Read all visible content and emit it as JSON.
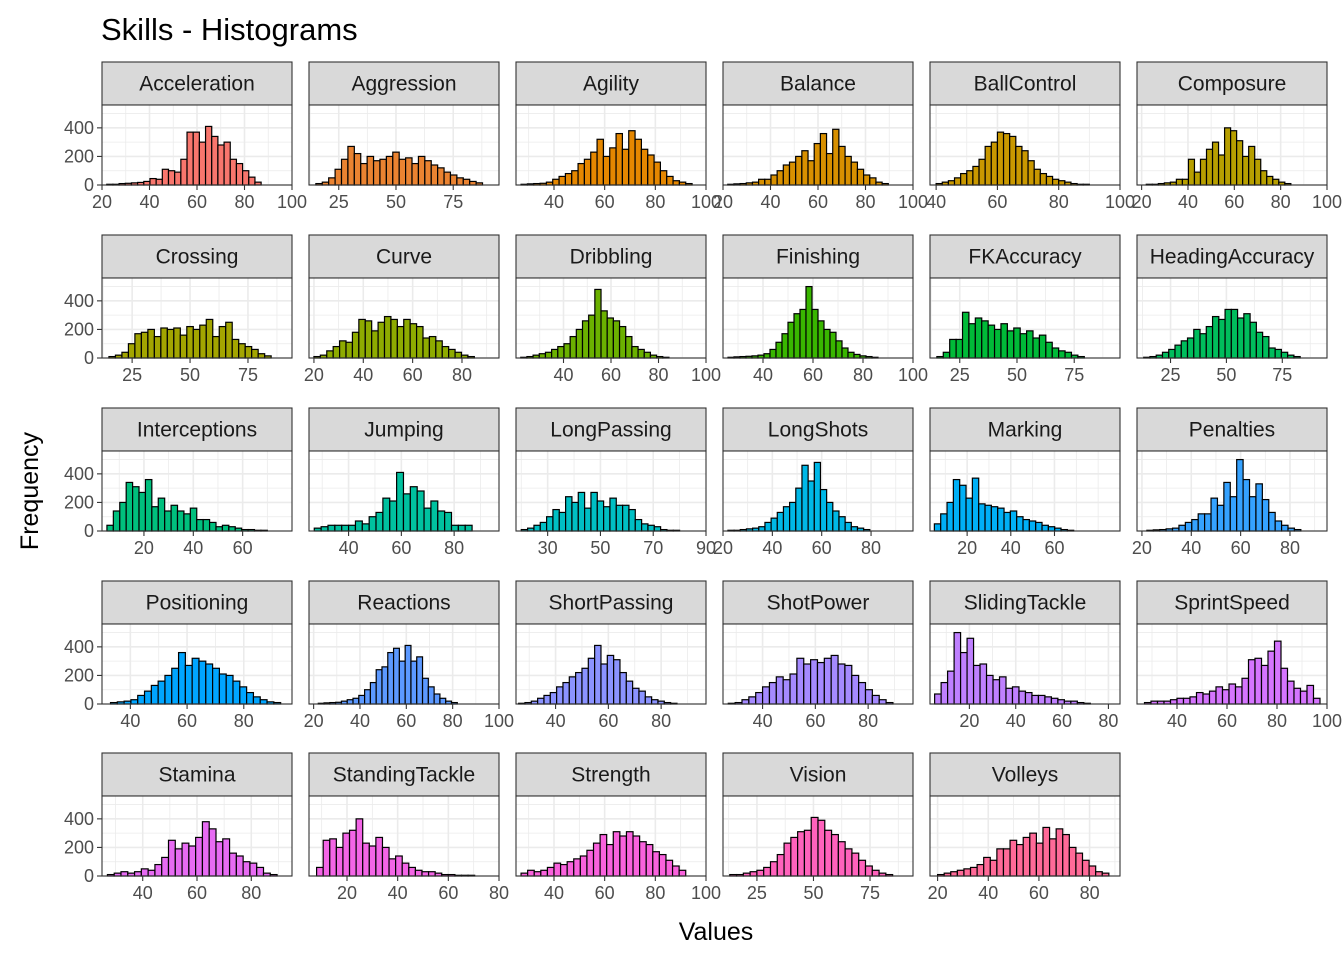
{
  "chart_data": {
    "type": "histogram-facets",
    "title": "Skills - Histograms",
    "xlabel": "Values",
    "ylabel": "Frequency",
    "y_ticks": [
      0,
      200,
      400
    ],
    "y_range": [
      0,
      560
    ],
    "facets": [
      {
        "name": "Acceleration",
        "color": "#F8766D",
        "x_range": [
          20,
          100
        ],
        "x_ticks": [
          20,
          40,
          60,
          80,
          100
        ],
        "x_start": 22,
        "bin_width": 2.6,
        "counts": [
          5,
          5,
          10,
          12,
          15,
          18,
          25,
          45,
          40,
          110,
          100,
          90,
          180,
          370,
          370,
          300,
          410,
          340,
          280,
          300,
          180,
          150,
          100,
          55,
          20
        ]
      },
      {
        "name": "Aggression",
        "color": "#EA8331",
        "x_range": [
          12,
          95
        ],
        "x_ticks": [
          25,
          50,
          75
        ],
        "x_start": 15,
        "bin_width": 2.8,
        "counts": [
          10,
          20,
          50,
          110,
          180,
          270,
          220,
          150,
          200,
          170,
          180,
          200,
          230,
          180,
          190,
          150,
          200,
          170,
          140,
          120,
          90,
          70,
          50,
          40,
          25,
          15
        ]
      },
      {
        "name": "Agility",
        "color": "#E58700",
        "x_range": [
          25,
          100
        ],
        "x_ticks": [
          40,
          60,
          80,
          100
        ],
        "x_start": 27,
        "bin_width": 2.5,
        "counts": [
          5,
          8,
          10,
          12,
          20,
          40,
          60,
          80,
          100,
          150,
          180,
          230,
          320,
          200,
          260,
          360,
          250,
          380,
          320,
          250,
          210,
          160,
          100,
          60,
          30,
          20,
          10
        ]
      },
      {
        "name": "Balance",
        "color": "#D89000",
        "x_range": [
          20,
          100
        ],
        "x_ticks": [
          20,
          40,
          60,
          80,
          100
        ],
        "x_start": 22,
        "bin_width": 2.6,
        "counts": [
          5,
          8,
          10,
          15,
          20,
          40,
          40,
          70,
          100,
          140,
          160,
          200,
          240,
          170,
          290,
          360,
          220,
          390,
          270,
          200,
          160,
          110,
          70,
          50,
          20,
          10
        ]
      },
      {
        "name": "BallControl",
        "color": "#C99800",
        "x_range": [
          38,
          100
        ],
        "x_ticks": [
          40,
          60,
          80,
          100
        ],
        "x_start": 40,
        "bin_width": 2.0,
        "counts": [
          10,
          20,
          30,
          50,
          80,
          100,
          130,
          180,
          270,
          300,
          370,
          360,
          340,
          270,
          240,
          170,
          110,
          80,
          60,
          40,
          30,
          20,
          10,
          5,
          5
        ]
      },
      {
        "name": "Composure",
        "color": "#B79F00",
        "x_range": [
          18,
          100
        ],
        "x_ticks": [
          20,
          40,
          60,
          80,
          100
        ],
        "x_start": 22,
        "bin_width": 2.6,
        "counts": [
          5,
          5,
          10,
          15,
          20,
          40,
          40,
          180,
          90,
          180,
          250,
          300,
          210,
          400,
          380,
          310,
          200,
          270,
          180,
          100,
          60,
          40,
          20,
          10
        ]
      },
      {
        "name": "Crossing",
        "color": "#A3A500",
        "x_range": [
          12,
          94
        ],
        "x_ticks": [
          25,
          50,
          75
        ],
        "x_start": 15,
        "bin_width": 2.8,
        "counts": [
          10,
          20,
          40,
          100,
          170,
          180,
          200,
          150,
          210,
          200,
          210,
          160,
          220,
          200,
          230,
          270,
          150,
          220,
          250,
          130,
          100,
          80,
          60,
          30,
          15
        ]
      },
      {
        "name": "Curve",
        "color": "#8EAB00",
        "x_range": [
          18,
          95
        ],
        "x_ticks": [
          20,
          40,
          60,
          80
        ],
        "x_start": 20,
        "bin_width": 2.6,
        "counts": [
          10,
          20,
          50,
          80,
          120,
          110,
          180,
          270,
          260,
          190,
          250,
          290,
          270,
          220,
          270,
          240,
          220,
          140,
          150,
          120,
          80,
          60,
          40,
          20,
          10
        ]
      },
      {
        "name": "Dribbling",
        "color": "#6BB100",
        "x_range": [
          20,
          100
        ],
        "x_ticks": [
          40,
          60,
          80,
          100
        ],
        "x_start": 22,
        "bin_width": 2.6,
        "counts": [
          5,
          10,
          20,
          30,
          40,
          60,
          80,
          100,
          150,
          200,
          260,
          300,
          480,
          330,
          280,
          260,
          220,
          150,
          80,
          60,
          40,
          20,
          10,
          5
        ]
      },
      {
        "name": "Finishing",
        "color": "#39B600",
        "x_range": [
          24,
          100
        ],
        "x_ticks": [
          40,
          60,
          80,
          100
        ],
        "x_start": 26,
        "bin_width": 2.4,
        "counts": [
          5,
          8,
          10,
          12,
          15,
          20,
          30,
          60,
          110,
          170,
          250,
          310,
          340,
          500,
          340,
          260,
          200,
          180,
          120,
          70,
          40,
          25,
          15,
          10,
          5
        ]
      },
      {
        "name": "FKAccuracy",
        "color": "#00BA38",
        "x_range": [
          12,
          95
        ],
        "x_ticks": [
          25,
          50,
          75
        ],
        "x_start": 15,
        "bin_width": 2.8,
        "counts": [
          10,
          40,
          130,
          130,
          320,
          240,
          280,
          260,
          230,
          200,
          240,
          190,
          210,
          170,
          190,
          140,
          160,
          110,
          70,
          50,
          40,
          20,
          10
        ]
      },
      {
        "name": "HeadingAccuracy",
        "color": "#00BD5C",
        "x_range": [
          10,
          95
        ],
        "x_ticks": [
          25,
          50,
          75
        ],
        "x_start": 13,
        "bin_width": 2.8,
        "counts": [
          5,
          10,
          20,
          40,
          60,
          90,
          120,
          140,
          200,
          170,
          220,
          290,
          270,
          340,
          340,
          280,
          310,
          250,
          180,
          150,
          70,
          60,
          40,
          20,
          10
        ]
      },
      {
        "name": "Interceptions",
        "color": "#00BF7D",
        "x_range": [
          3,
          80
        ],
        "x_ticks": [
          20,
          40,
          60
        ],
        "x_start": 5,
        "bin_width": 2.6,
        "counts": [
          40,
          140,
          200,
          340,
          310,
          270,
          360,
          170,
          230,
          140,
          180,
          140,
          120,
          160,
          80,
          80,
          60,
          30,
          40,
          30,
          20,
          10,
          10,
          5,
          5
        ]
      },
      {
        "name": "Jumping",
        "color": "#00C19F",
        "x_range": [
          25,
          97
        ],
        "x_ticks": [
          40,
          60,
          80
        ],
        "x_start": 27,
        "bin_width": 2.6,
        "counts": [
          20,
          30,
          40,
          40,
          40,
          40,
          70,
          50,
          100,
          130,
          230,
          210,
          410,
          260,
          310,
          280,
          160,
          210,
          140,
          130,
          40,
          40,
          40
        ]
      },
      {
        "name": "LongPassing",
        "color": "#00BFC4",
        "x_range": [
          18,
          90
        ],
        "x_ticks": [
          30,
          50,
          70,
          90
        ],
        "x_start": 20,
        "bin_width": 2.4,
        "counts": [
          10,
          20,
          40,
          60,
          100,
          150,
          130,
          240,
          200,
          270,
          160,
          270,
          210,
          170,
          230,
          180,
          180,
          150,
          80,
          50,
          40,
          30,
          10,
          5,
          5
        ]
      },
      {
        "name": "LongShots",
        "color": "#00B8E7",
        "x_range": [
          20,
          97
        ],
        "x_ticks": [
          20,
          40,
          60,
          80
        ],
        "x_start": 22,
        "bin_width": 2.5,
        "counts": [
          5,
          5,
          10,
          15,
          20,
          30,
          60,
          90,
          130,
          170,
          200,
          300,
          460,
          350,
          480,
          290,
          200,
          140,
          100,
          60,
          30,
          20,
          10
        ]
      },
      {
        "name": "Marking",
        "color": "#00B0F6",
        "x_range": [
          3,
          90
        ],
        "x_ticks": [
          20,
          40,
          60
        ],
        "x_start": 5,
        "bin_width": 2.9,
        "counts": [
          50,
          120,
          200,
          360,
          320,
          230,
          370,
          190,
          180,
          170,
          160,
          130,
          140,
          100,
          80,
          70,
          60,
          40,
          30,
          20,
          10,
          5
        ]
      },
      {
        "name": "Penalties",
        "color": "#35A2FF",
        "x_range": [
          18,
          95
        ],
        "x_ticks": [
          20,
          40,
          60,
          80
        ],
        "x_start": 22,
        "bin_width": 2.6,
        "counts": [
          5,
          8,
          10,
          15,
          20,
          40,
          60,
          80,
          120,
          120,
          230,
          180,
          340,
          240,
          500,
          360,
          240,
          330,
          220,
          130,
          70,
          40,
          20,
          10
        ]
      },
      {
        "name": "Positioning",
        "color": "#00A5FF",
        "x_range": [
          30,
          97
        ],
        "x_ticks": [
          40,
          60,
          80
        ],
        "x_start": 33,
        "bin_width": 2.4,
        "counts": [
          10,
          15,
          20,
          30,
          60,
          90,
          130,
          160,
          200,
          250,
          360,
          270,
          320,
          300,
          280,
          250,
          210,
          200,
          160,
          120,
          80,
          50,
          30,
          15,
          10
        ]
      },
      {
        "name": "Reactions",
        "color": "#5C99FF",
        "x_range": [
          18,
          100
        ],
        "x_ticks": [
          20,
          40,
          60,
          80,
          100
        ],
        "x_start": 22,
        "bin_width": 2.5,
        "counts": [
          5,
          8,
          10,
          12,
          20,
          30,
          40,
          60,
          100,
          150,
          240,
          260,
          360,
          390,
          300,
          410,
          300,
          330,
          180,
          120,
          70,
          40,
          20,
          10
        ]
      },
      {
        "name": "ShortPassing",
        "color": "#8B93FF",
        "x_range": [
          25,
          97
        ],
        "x_ticks": [
          40,
          60,
          80
        ],
        "x_start": 26,
        "bin_width": 2.4,
        "counts": [
          5,
          10,
          20,
          40,
          60,
          80,
          120,
          150,
          190,
          220,
          250,
          320,
          410,
          280,
          340,
          310,
          220,
          160,
          110,
          90,
          50,
          30,
          20,
          10,
          5
        ]
      },
      {
        "name": "ShotPower",
        "color": "#A58AFF",
        "x_range": [
          25,
          97
        ],
        "x_ticks": [
          40,
          60,
          80
        ],
        "x_start": 27,
        "bin_width": 2.6,
        "counts": [
          5,
          10,
          30,
          50,
          80,
          120,
          150,
          190,
          170,
          210,
          320,
          280,
          310,
          290,
          320,
          340,
          280,
          270,
          200,
          150,
          100,
          60,
          30,
          10
        ]
      },
      {
        "name": "SlidingTackle",
        "color": "#BF80FF",
        "x_range": [
          3,
          85
        ],
        "x_ticks": [
          20,
          40,
          60,
          80
        ],
        "x_start": 5,
        "bin_width": 2.8,
        "counts": [
          70,
          150,
          230,
          500,
          360,
          460,
          270,
          280,
          200,
          170,
          190,
          110,
          120,
          90,
          80,
          60,
          60,
          50,
          40,
          30,
          20,
          20,
          10,
          5
        ]
      },
      {
        "name": "SprintSpeed",
        "color": "#D575FE",
        "x_range": [
          24,
          100
        ],
        "x_ticks": [
          40,
          60,
          80,
          100
        ],
        "x_start": 27,
        "bin_width": 2.6,
        "counts": [
          10,
          20,
          20,
          20,
          30,
          40,
          40,
          50,
          80,
          70,
          90,
          120,
          100,
          140,
          120,
          180,
          310,
          320,
          270,
          370,
          440,
          250,
          160,
          110,
          90,
          130,
          40
        ]
      },
      {
        "name": "Stamina",
        "color": "#E76BF3",
        "x_range": [
          25,
          95
        ],
        "x_ticks": [
          40,
          60,
          80
        ],
        "x_start": 27,
        "bin_width": 2.5,
        "counts": [
          10,
          20,
          30,
          20,
          30,
          50,
          40,
          80,
          130,
          250,
          190,
          230,
          210,
          270,
          380,
          330,
          240,
          260,
          160,
          140,
          100,
          90,
          60,
          20,
          10
        ]
      },
      {
        "name": "StandingTackle",
        "color": "#F365E6",
        "x_range": [
          5,
          80
        ],
        "x_ticks": [
          20,
          40,
          60,
          80
        ],
        "x_start": 8,
        "bin_width": 2.6,
        "counts": [
          60,
          250,
          260,
          200,
          300,
          320,
          400,
          230,
          210,
          270,
          200,
          120,
          140,
          90,
          60,
          40,
          30,
          30,
          20,
          10,
          10,
          5,
          5,
          5
        ]
      },
      {
        "name": "Strength",
        "color": "#F962DD",
        "x_range": [
          25,
          100
        ],
        "x_ticks": [
          40,
          60,
          80,
          100
        ],
        "x_start": 27,
        "bin_width": 2.6,
        "counts": [
          20,
          40,
          30,
          40,
          60,
          90,
          80,
          100,
          120,
          140,
          180,
          230,
          290,
          220,
          310,
          280,
          310,
          280,
          240,
          220,
          170,
          150,
          110,
          70,
          40
        ]
      },
      {
        "name": "Vision",
        "color": "#FF62BC",
        "x_range": [
          10,
          94
        ],
        "x_ticks": [
          25,
          50,
          75
        ],
        "x_start": 13,
        "bin_width": 3.0,
        "counts": [
          10,
          10,
          20,
          30,
          40,
          60,
          100,
          150,
          230,
          270,
          310,
          320,
          410,
          390,
          320,
          290,
          240,
          190,
          160,
          110,
          70,
          40,
          20,
          10
        ]
      },
      {
        "name": "Volleys",
        "color": "#FF6A98",
        "x_range": [
          17,
          92
        ],
        "x_ticks": [
          20,
          40,
          60,
          80
        ],
        "x_start": 20,
        "bin_width": 2.6,
        "counts": [
          10,
          20,
          30,
          40,
          50,
          60,
          80,
          130,
          110,
          190,
          190,
          250,
          220,
          270,
          300,
          230,
          340,
          260,
          330,
          290,
          200,
          160,
          110,
          70,
          30,
          20
        ]
      }
    ]
  }
}
